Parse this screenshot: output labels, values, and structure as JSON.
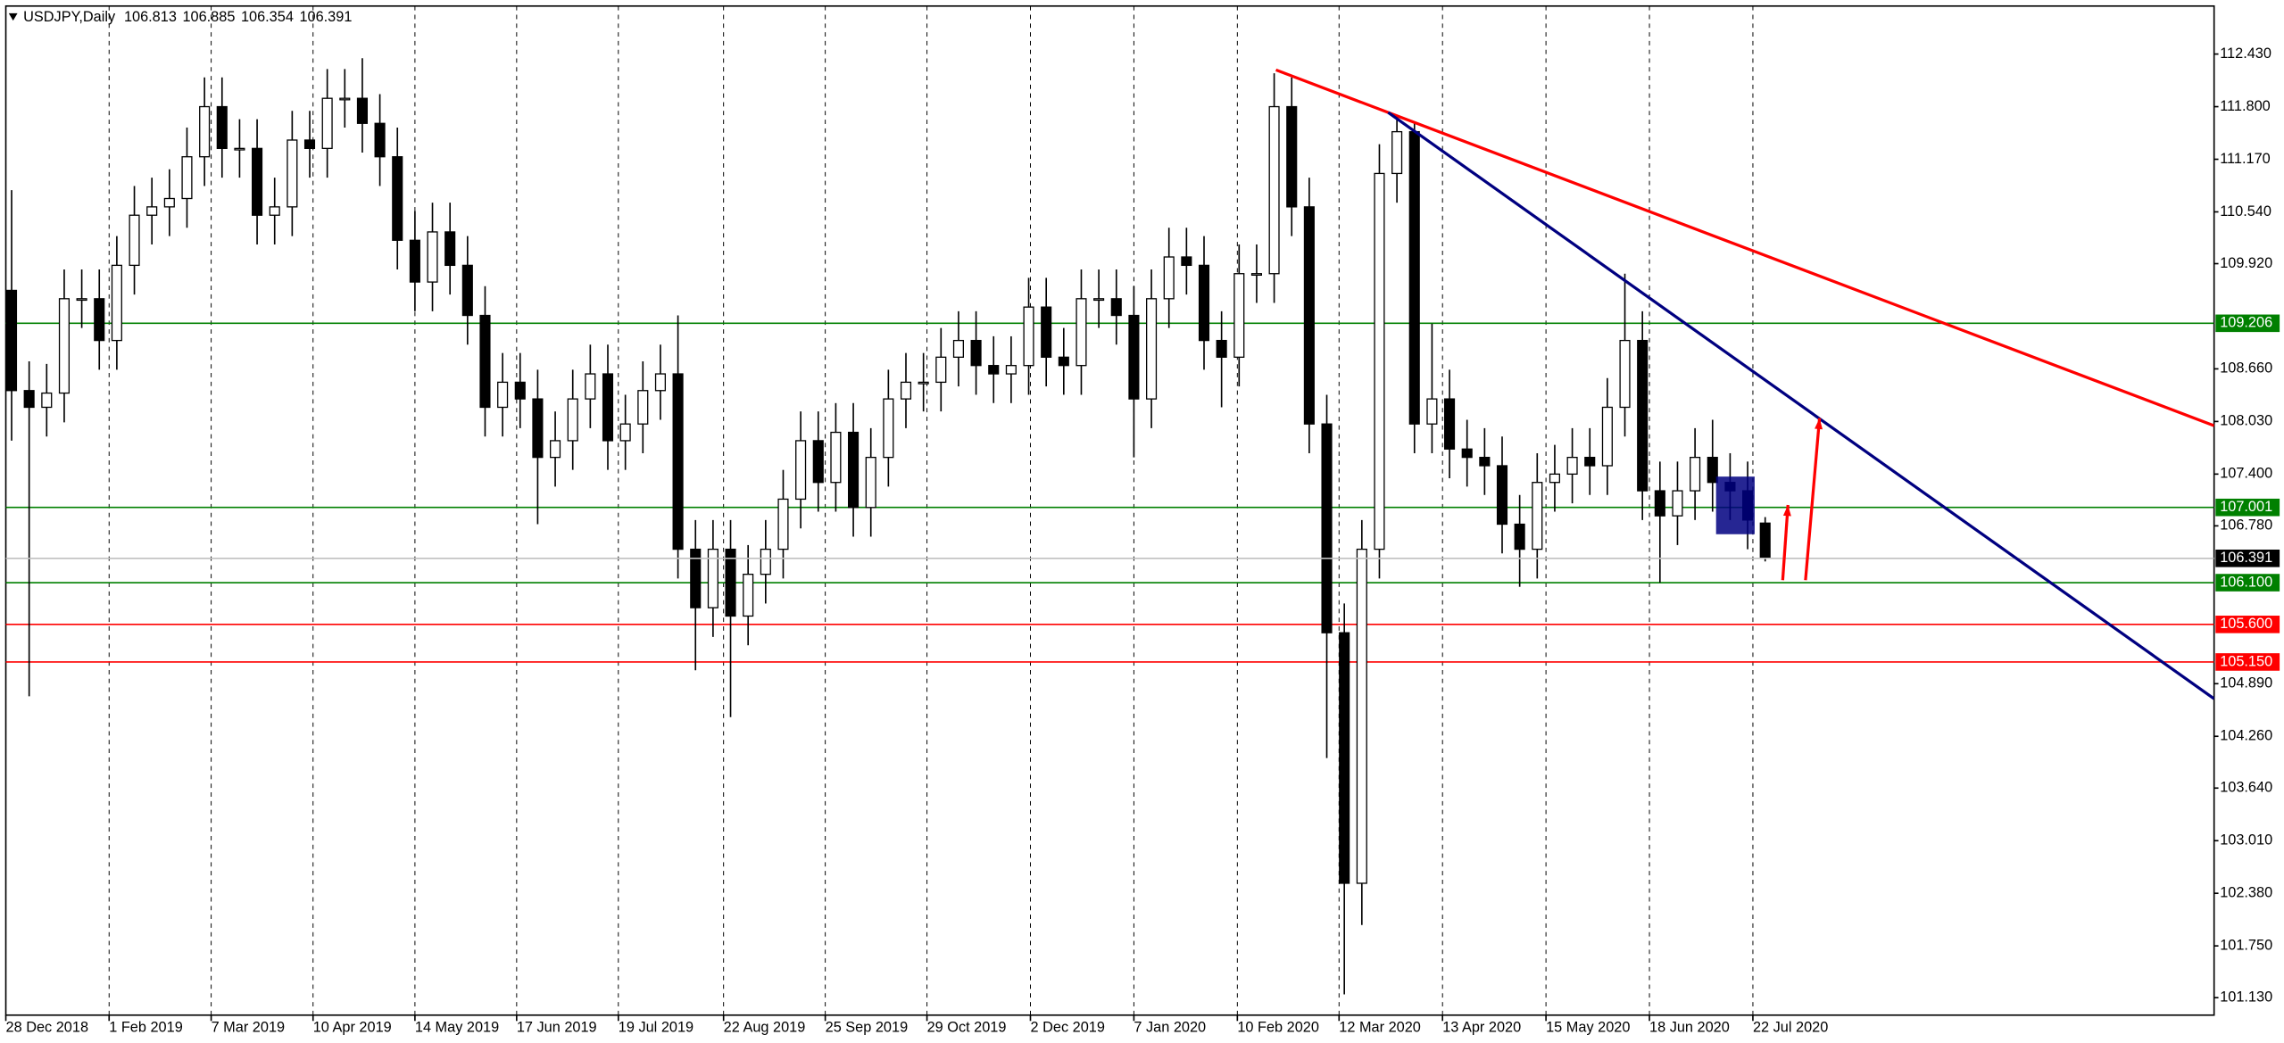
{
  "chart_data": {
    "type": "candlestick",
    "title": "USDJPY,Daily",
    "xlim": [
      -0.33,
      125.6
    ],
    "ylim": [
      100.921,
      113.005
    ],
    "xticks": [
      {
        "value": -0.33,
        "label": "28 Dec 2018"
      },
      {
        "value": 5.56,
        "label": "1 Feb 2019"
      },
      {
        "value": 11.38,
        "label": "7 Mar 2019"
      },
      {
        "value": 17.19,
        "label": "10 Apr 2019"
      },
      {
        "value": 23.0,
        "label": "14 May 2019"
      },
      {
        "value": 28.8,
        "label": "17 Jun 2019"
      },
      {
        "value": 34.6,
        "label": "19 Jul 2019"
      },
      {
        "value": 40.6,
        "label": "22 Aug 2019"
      },
      {
        "value": 46.4,
        "label": "25 Sep 2019"
      },
      {
        "value": 52.2,
        "label": "29 Oct 2019"
      },
      {
        "value": 58.1,
        "label": "2 Dec 2019"
      },
      {
        "value": 64.0,
        "label": "7 Jan 2020"
      },
      {
        "value": 69.9,
        "label": "10 Feb 2020"
      },
      {
        "value": 75.7,
        "label": "12 Mar 2020"
      },
      {
        "value": 81.6,
        "label": "13 Apr 2020"
      },
      {
        "value": 87.5,
        "label": "15 May 2020"
      },
      {
        "value": 93.4,
        "label": "18 Jun 2020"
      },
      {
        "value": 99.3,
        "label": "22 Jul 2020"
      }
    ],
    "yticks": [
      {
        "value": 112.43,
        "label": "112.430"
      },
      {
        "value": 111.8,
        "label": "111.800"
      },
      {
        "value": 111.17,
        "label": "111.170"
      },
      {
        "value": 110.54,
        "label": "110.540"
      },
      {
        "value": 109.92,
        "label": "109.920"
      },
      {
        "value": 108.66,
        "label": "108.660"
      },
      {
        "value": 108.03,
        "label": "108.030"
      },
      {
        "value": 107.4,
        "label": "107.400"
      },
      {
        "value": 106.78,
        "label": "106.780"
      },
      {
        "value": 104.89,
        "label": "104.890"
      },
      {
        "value": 104.26,
        "label": "104.260"
      },
      {
        "value": 103.64,
        "label": "103.640"
      },
      {
        "value": 103.01,
        "label": "103.010"
      },
      {
        "value": 102.38,
        "label": "102.380"
      },
      {
        "value": 101.75,
        "label": "101.750"
      },
      {
        "value": 101.13,
        "label": "101.130"
      }
    ],
    "candles": {
      "color": "#000000",
      "open": [
        109.6,
        108.4,
        108.2,
        108.37,
        109.5,
        109.5,
        109.0,
        109.9,
        110.5,
        110.6,
        110.7,
        111.2,
        111.8,
        111.3,
        111.3,
        110.5,
        110.6,
        111.4,
        111.3,
        111.9,
        111.9,
        111.6,
        111.2,
        110.2,
        109.7,
        110.3,
        109.9,
        109.3,
        108.2,
        108.5,
        108.3,
        107.6,
        107.8,
        108.3,
        108.6,
        107.8,
        108.0,
        108.4,
        108.6,
        106.5,
        105.8,
        106.5,
        105.7,
        106.2,
        106.5,
        107.1,
        107.8,
        107.3,
        107.9,
        107.0,
        107.6,
        108.3,
        108.5,
        108.5,
        108.8,
        109.0,
        108.7,
        108.6,
        108.7,
        109.4,
        108.8,
        108.7,
        109.5,
        109.5,
        109.3,
        108.3,
        109.5,
        110.0,
        109.9,
        109.0,
        108.8,
        109.8,
        109.8,
        111.8,
        110.6,
        108.0,
        105.5,
        102.5,
        106.5,
        111.0,
        111.5,
        108.0,
        108.3,
        107.7,
        107.6,
        107.5,
        106.8,
        106.5,
        107.3,
        107.4,
        107.6,
        107.5,
        108.2,
        109.0,
        107.2,
        106.9,
        107.2,
        107.6,
        107.3,
        107.2,
        106.813
      ],
      "high": [
        110.8,
        108.75,
        108.72,
        109.85,
        109.85,
        109.85,
        110.25,
        110.85,
        110.95,
        111.05,
        111.55,
        112.15,
        112.15,
        111.65,
        111.65,
        110.95,
        111.75,
        111.75,
        112.25,
        112.25,
        112.38,
        111.95,
        111.55,
        110.55,
        110.65,
        110.65,
        110.25,
        109.65,
        108.85,
        108.85,
        108.65,
        108.15,
        108.65,
        108.95,
        108.95,
        108.35,
        108.75,
        108.95,
        109.3,
        106.85,
        106.85,
        106.85,
        106.55,
        106.85,
        107.45,
        108.15,
        108.15,
        108.25,
        108.25,
        107.95,
        108.65,
        108.85,
        108.85,
        109.15,
        109.35,
        109.35,
        109.05,
        109.05,
        109.75,
        109.75,
        109.15,
        109.85,
        109.85,
        109.85,
        109.65,
        109.85,
        110.35,
        110.35,
        110.25,
        109.35,
        110.15,
        110.15,
        112.2,
        112.15,
        110.95,
        108.35,
        105.85,
        106.85,
        111.35,
        111.7,
        111.6,
        109.2,
        108.65,
        108.05,
        107.95,
        107.85,
        107.15,
        107.65,
        107.75,
        107.95,
        107.95,
        108.55,
        109.8,
        109.35,
        107.55,
        107.55,
        107.95,
        108.05,
        107.65,
        107.55,
        106.885
      ],
      "low": [
        107.8,
        104.74,
        107.85,
        108.02,
        109.15,
        108.65,
        108.65,
        109.55,
        110.15,
        110.25,
        110.35,
        110.85,
        110.95,
        110.95,
        110.15,
        110.15,
        110.25,
        110.95,
        110.95,
        111.55,
        111.25,
        110.85,
        109.85,
        109.35,
        109.35,
        109.55,
        108.95,
        107.85,
        107.85,
        107.95,
        106.8,
        107.25,
        107.45,
        107.95,
        107.45,
        107.45,
        107.65,
        108.05,
        106.15,
        105.05,
        105.45,
        104.49,
        105.35,
        105.85,
        106.15,
        106.75,
        106.95,
        106.95,
        106.65,
        106.65,
        107.25,
        107.95,
        108.15,
        108.15,
        108.45,
        108.35,
        108.25,
        108.25,
        108.35,
        108.45,
        108.35,
        108.35,
        109.15,
        108.95,
        107.6,
        107.95,
        109.15,
        109.55,
        108.65,
        108.2,
        108.45,
        109.45,
        109.45,
        110.25,
        107.65,
        104.0,
        101.17,
        102.0,
        106.15,
        110.65,
        107.65,
        107.65,
        107.35,
        107.25,
        107.15,
        106.45,
        106.05,
        106.15,
        106.95,
        107.05,
        107.15,
        107.15,
        107.85,
        106.85,
        106.1,
        106.55,
        106.85,
        106.95,
        106.85,
        106.5,
        106.354
      ],
      "close": [
        108.4,
        108.2,
        108.37,
        109.5,
        109.5,
        109.0,
        109.9,
        110.5,
        110.6,
        110.7,
        111.2,
        111.8,
        111.3,
        111.3,
        110.5,
        110.6,
        111.4,
        111.3,
        111.9,
        111.9,
        111.6,
        111.2,
        110.2,
        109.7,
        110.3,
        109.9,
        109.3,
        108.2,
        108.5,
        108.3,
        107.6,
        107.8,
        108.3,
        108.6,
        107.8,
        108.0,
        108.4,
        108.6,
        106.5,
        105.8,
        106.5,
        105.7,
        106.2,
        106.5,
        107.1,
        107.8,
        107.3,
        107.9,
        107.0,
        107.6,
        108.3,
        108.5,
        108.5,
        108.8,
        109.0,
        108.7,
        108.6,
        108.7,
        109.4,
        108.8,
        108.7,
        109.5,
        109.5,
        109.3,
        108.3,
        109.5,
        110.0,
        109.9,
        109.0,
        108.8,
        109.8,
        109.8,
        111.8,
        110.6,
        108.0,
        105.5,
        102.5,
        106.5,
        111.0,
        111.5,
        108.0,
        108.3,
        107.7,
        107.6,
        107.5,
        106.8,
        106.5,
        107.3,
        107.4,
        107.6,
        107.5,
        108.2,
        109.0,
        107.2,
        106.9,
        107.2,
        107.6,
        107.3,
        107.2,
        106.85,
        106.391
      ]
    },
    "levels": [
      {
        "value": 109.206,
        "color": "#008000"
      },
      {
        "value": 107.001,
        "color": "#008000"
      },
      {
        "value": {
          "value": 106.1,
          "label": "106.100"
        },
        "color": "#008000"
      },
      {
        "value": {
          "value": 105.6,
          "label": "105.600"
        },
        "color": "#ff0000"
      },
      {
        "value": {
          "value": 105.15,
          "label": "105.150"
        },
        "color": "#ff0000"
      }
    ],
    "trendlines": [
      {
        "color": "#ff0000",
        "x": [
          72.1,
          125.6
        ],
        "y": [
          112.24,
          107.98
        ]
      },
      {
        "color": "#000080",
        "x": [
          78.5,
          125.6
        ],
        "y": [
          111.73,
          104.71
        ]
      }
    ],
    "arrows": [
      {
        "color": "#ff0000",
        "x": [
          101.0,
          101.3
        ],
        "y": [
          106.13,
          107.03
        ]
      },
      {
        "color": "#ff0000",
        "x": [
          102.3,
          103.1
        ],
        "y": [
          106.13,
          108.07
        ]
      }
    ],
    "rectangles": [
      {
        "color": "#000080",
        "x": [
          97.2,
          99.4
        ],
        "y": [
          107.37,
          106.68
        ]
      }
    ]
  }
}
